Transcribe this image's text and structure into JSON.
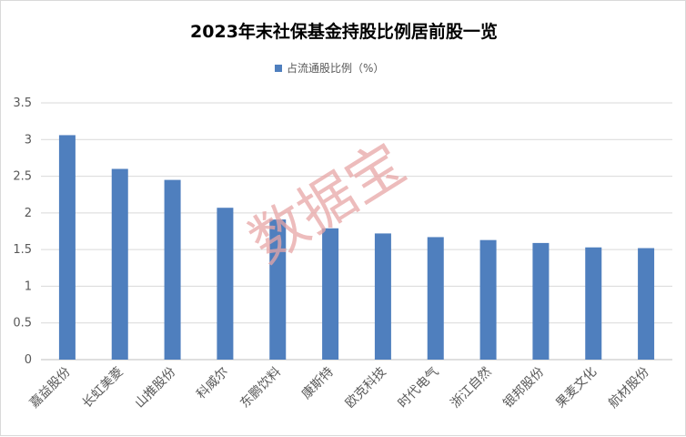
{
  "chart_data": {
    "type": "bar",
    "title": "2023年末社保基金持股比例居前股一览",
    "series": [
      {
        "name": "占流通股比例（%）",
        "values": [
          3.06,
          2.6,
          2.45,
          2.07,
          1.91,
          1.79,
          1.72,
          1.67,
          1.63,
          1.59,
          1.53,
          1.52
        ]
      }
    ],
    "categories": [
      "嘉益股份",
      "长虹美菱",
      "山推股份",
      "科威尔",
      "东鹏饮料",
      "康斯特",
      "欧克科技",
      "时代电气",
      "浙江自然",
      "银邦股份",
      "果麦文化",
      "航材股份"
    ],
    "ylim": [
      0,
      3.5
    ],
    "yticks": [
      "0",
      "0.5",
      "1",
      "1.5",
      "2",
      "2.5",
      "3",
      "3.5"
    ],
    "grid": true,
    "legend_position": "top",
    "colors": {
      "bar": "#4f7fbe",
      "grid": "#d9d9d9",
      "watermark": "#e8a6a6"
    }
  },
  "watermark": {
    "text": "数据宝"
  }
}
